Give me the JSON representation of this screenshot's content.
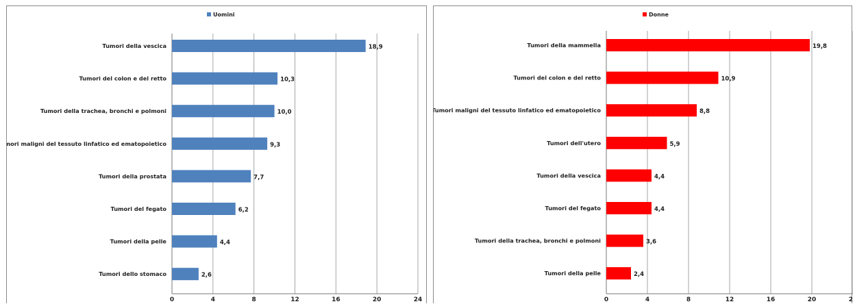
{
  "chart_data": [
    {
      "type": "bar",
      "orientation": "horizontal",
      "legend_position": "top",
      "grid": true,
      "xlim": [
        0,
        24
      ],
      "xticks": [
        "0",
        "4",
        "8",
        "12",
        "16",
        "20",
        "24"
      ],
      "color": "#4f81bd",
      "series": [
        {
          "name": "Uomini",
          "categories": [
            "Tumori della vescica",
            "Tumori del colon e del retto",
            "Tumori della trachea, bronchi e polmoni",
            "Tumori maligni del tessuto linfatico ed ematopoietico",
            "Tumori della prostata",
            "Tumori del fegato",
            "Tumori della pelle",
            "Tumori dello stomaco"
          ],
          "values": [
            18.9,
            10.3,
            10.0,
            9.3,
            7.7,
            6.2,
            4.4,
            2.6
          ],
          "labels": [
            "18,9",
            "10,3",
            "10,0",
            "9,3",
            "7,7",
            "6,2",
            "4,4",
            "2,6"
          ]
        }
      ]
    },
    {
      "type": "bar",
      "orientation": "horizontal",
      "legend_position": "top",
      "grid": true,
      "xlim": [
        0,
        24
      ],
      "xticks": [
        "0",
        "4",
        "8",
        "12",
        "16",
        "20",
        "24"
      ],
      "color": "#ff0000",
      "series": [
        {
          "name": "Donne",
          "categories": [
            "Tumori della mammella",
            "Tumori del colon e del retto",
            "Tumori maligni del tessuto linfatico ed ematopoietico",
            "Tumori dell'utero",
            "Tumori della vescica",
            "Tumori del fegato",
            "Tumori della trachea, bronchi e polmoni",
            "Tumori della pelle"
          ],
          "values": [
            19.8,
            10.9,
            8.8,
            5.9,
            4.4,
            4.4,
            3.6,
            2.4
          ],
          "labels": [
            "19,8",
            "10,9",
            "8,8",
            "5,9",
            "4,4",
            "4,4",
            "3,6",
            "2,4"
          ]
        }
      ]
    }
  ]
}
